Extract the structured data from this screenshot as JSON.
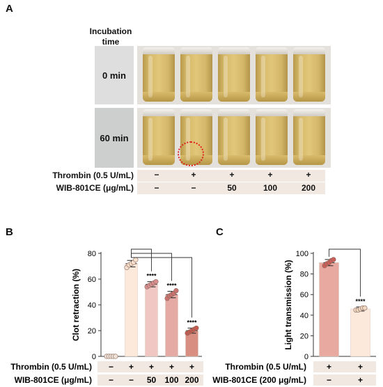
{
  "panel_a": {
    "letter": "A",
    "header": [
      "Incubation",
      "time"
    ],
    "rows": [
      {
        "label": "0 min"
      },
      {
        "label": "60 min"
      }
    ],
    "vial_count": 5,
    "clot_marker_color": "#e02020",
    "conditions": [
      {
        "label": "Thrombin (0.5 U/mL)",
        "values": [
          "−",
          "+",
          "+",
          "+",
          "+"
        ]
      },
      {
        "label": "WIB-801CE (μg/mL)",
        "values": [
          "−",
          "−",
          "50",
          "100",
          "200"
        ]
      }
    ]
  },
  "chart_data": [
    {
      "panel": "B",
      "type": "bar",
      "ylabel": "Clot retraction (%)",
      "ylim": [
        0,
        80
      ],
      "yticks": [
        0,
        20,
        40,
        60,
        80
      ],
      "values": [
        0,
        72,
        56,
        48,
        20
      ],
      "errors": [
        0,
        2.5,
        2,
        2.5,
        2
      ],
      "points": [
        [
          0,
          0,
          0,
          0,
          0
        ],
        [
          69,
          71,
          72,
          73,
          75
        ],
        [
          54,
          55,
          56,
          57,
          58
        ],
        [
          45,
          47,
          48,
          49,
          51
        ],
        [
          18,
          19,
          20,
          21,
          22
        ]
      ],
      "colors": [
        "#f7f1ec",
        "#fde9dc",
        "#f0c7c3",
        "#e6aaa4",
        "#d88e80"
      ],
      "point_colors": [
        "#efe2d6",
        "#f6dfcc",
        "#d88e8e",
        "#c9726f",
        "#c25a4e"
      ],
      "annotations": [
        "",
        "",
        "****",
        "****",
        "****"
      ],
      "significance_reference": 1,
      "conditions": [
        {
          "label": "Thrombin (0.5 U/mL)",
          "values": [
            "−",
            "+",
            "+",
            "+",
            "+"
          ]
        },
        {
          "label": "WIB-801CE (μg/mL)",
          "values": [
            "−",
            "−",
            "50",
            "100",
            "200"
          ]
        }
      ]
    },
    {
      "panel": "C",
      "type": "bar",
      "ylabel": "Light transmission (%)",
      "ylim": [
        0,
        100
      ],
      "yticks": [
        0,
        20,
        40,
        60,
        80,
        100
      ],
      "values": [
        91,
        46
      ],
      "errors": [
        3,
        2
      ],
      "points": [
        [
          88,
          90,
          91,
          93,
          94
        ],
        [
          45,
          45,
          46,
          47,
          47
        ]
      ],
      "colors": [
        "#e8aaa0",
        "#fde9dc"
      ],
      "point_colors": [
        "#c95f58",
        "#efd8c2"
      ],
      "annotations": [
        "",
        "****"
      ],
      "significance_reference": 0,
      "conditions": [
        {
          "label": "Thrombin (0.5 U/mL)",
          "values": [
            "+",
            "+"
          ]
        },
        {
          "label": "WIB-801CE (200 μg/mL)",
          "values": [
            "−",
            "+"
          ]
        }
      ]
    }
  ]
}
